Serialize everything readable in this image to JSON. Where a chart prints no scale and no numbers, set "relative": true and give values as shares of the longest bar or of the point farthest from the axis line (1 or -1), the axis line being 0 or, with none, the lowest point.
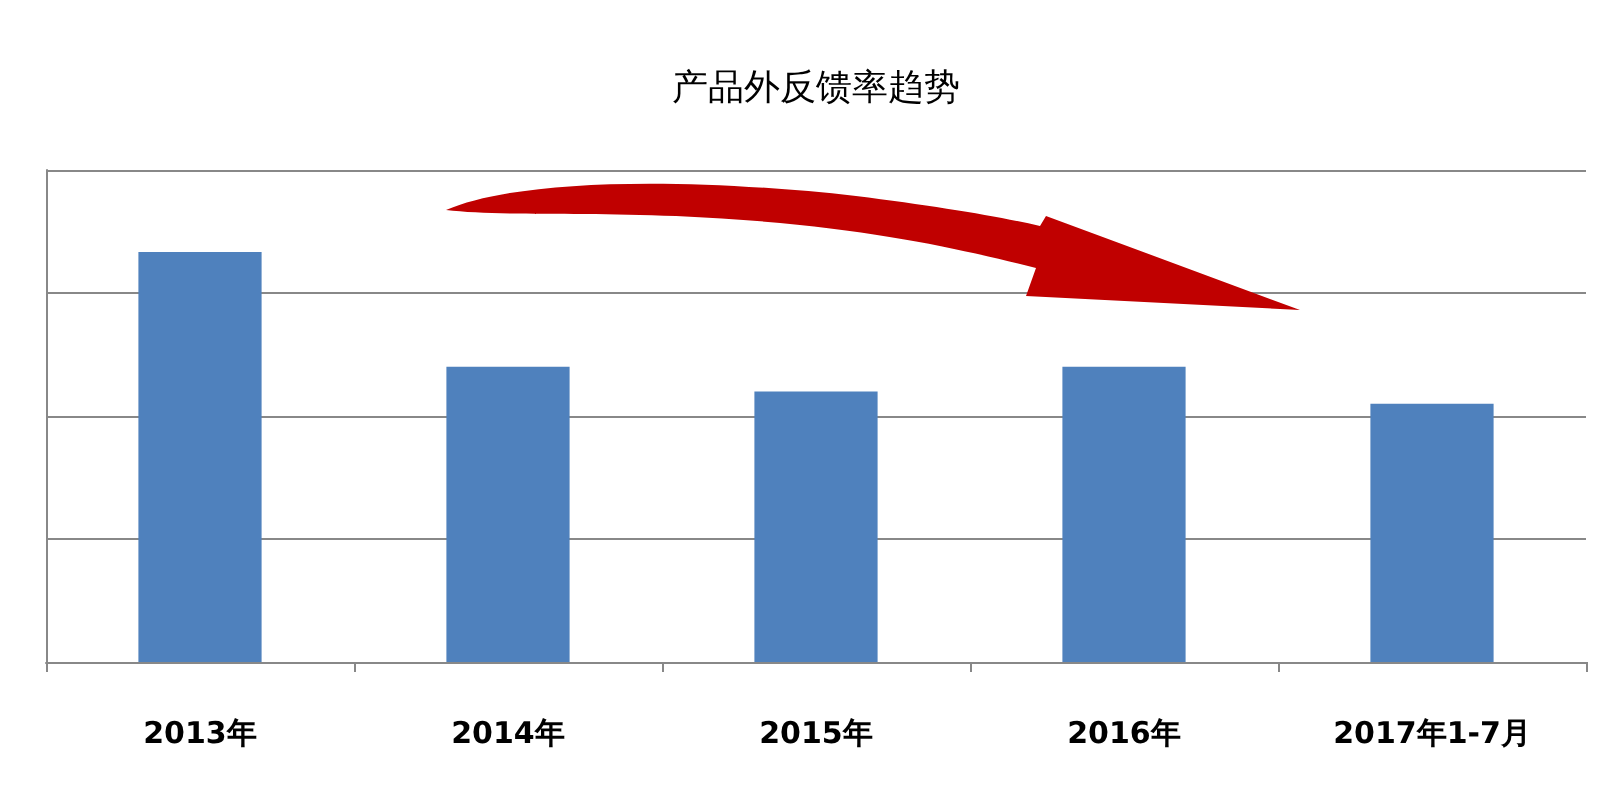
{
  "chart_data": {
    "type": "bar",
    "title": "产品外反馈率趋势",
    "categories": [
      "2013年",
      "2014年",
      "2015年",
      "2016年",
      "2017年1-7月"
    ],
    "values": [
      1,
      0.72,
      0.66,
      0.72,
      0.63
    ],
    "color": "#4f81bd",
    "relative": true,
    "grid": "y"
  }
}
